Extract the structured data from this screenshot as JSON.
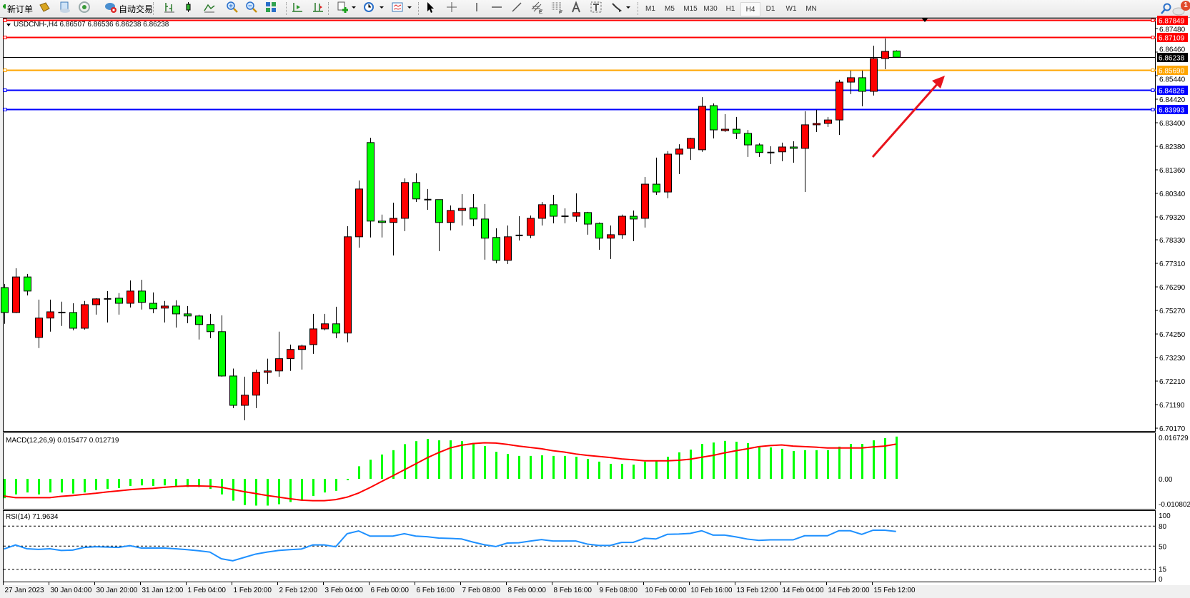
{
  "toolbar": {
    "items": [
      {
        "icon": "new-order-icon",
        "label": "新订单"
      },
      {
        "icon": "history-center-icon"
      },
      {
        "icon": "navigator-icon"
      },
      {
        "icon": "signals-icon"
      },
      {
        "icon": "autotrading-icon",
        "label": "自动交易"
      },
      {
        "icon": "bar-chart-icon"
      },
      {
        "icon": "candlestick-chart-icon"
      },
      {
        "icon": "line-chart-icon"
      },
      {
        "icon": "zoom-in-icon"
      },
      {
        "icon": "zoom-out-icon"
      },
      {
        "icon": "tile-windows-icon"
      },
      {
        "icon": "auto-scroll-icon"
      },
      {
        "icon": "chart-shift-icon"
      },
      {
        "icon": "new-chart-icon"
      },
      {
        "icon": "chevron-down-icon"
      },
      {
        "icon": "periodicity-clock-icon"
      },
      {
        "icon": "chevron-down-icon"
      },
      {
        "icon": "templates-icon"
      },
      {
        "icon": "chevron-down-icon"
      },
      {
        "icon": "cursor-icon"
      },
      {
        "icon": "crosshair-icon"
      },
      {
        "icon": "vertical-line-icon"
      },
      {
        "icon": "horizontal-line-icon"
      },
      {
        "icon": "trendline-icon"
      },
      {
        "icon": "equidistant-channel-icon"
      },
      {
        "icon": "fibonacci-icon"
      },
      {
        "icon": "text-icon"
      },
      {
        "icon": "text-label-icon"
      },
      {
        "icon": "arrows-icon"
      },
      {
        "icon": "chevron-down-icon"
      }
    ],
    "periods": [
      "M1",
      "M5",
      "M15",
      "M30",
      "H1",
      "H4",
      "D1",
      "W1",
      "MN"
    ],
    "active_period": "H4",
    "search_icon": "search-icon",
    "notifications_icon": "chat-bubble-icon",
    "notification_count": "1"
  },
  "chart": {
    "header": "USDCNH-,H4  6.86507 6.86536 6.86238 6.86238",
    "macd_label": "MACD(12,26,9) 0.015477 0.012719",
    "rsi_label": "RSI(14) 71.9634",
    "colors": {
      "bull": "#ff0000",
      "bear": "#00ff00",
      "macd_hist": "#00ff00",
      "macd_signal": "#ff0000",
      "rsi": "#1e90ff",
      "arrow": "#e8141c"
    },
    "price_ticks": [
      "6.87480",
      "6.86460",
      "6.85440",
      "6.84420",
      "6.83400",
      "6.82380",
      "6.81360",
      "6.80340",
      "6.79320",
      "6.78330",
      "6.77310",
      "6.76290",
      "6.75270",
      "6.74250",
      "6.73230",
      "6.72210",
      "6.71190",
      "6.70170"
    ],
    "levels": [
      {
        "price": "6.87849",
        "color": "#ff0000"
      },
      {
        "price": "6.87109",
        "color": "#ff0000"
      },
      {
        "price": "6.86238",
        "color": "#000000"
      },
      {
        "price": "6.85690",
        "color": "#ffa500"
      },
      {
        "price": "6.84826",
        "color": "#0000ff"
      },
      {
        "price": "6.83993",
        "color": "#0000ff"
      }
    ],
    "macd_ticks": [
      "0.016729",
      "0.00",
      "-0.010802"
    ],
    "rsi_ticks": [
      "100",
      "80",
      "50",
      "15",
      "0"
    ],
    "time_labels": [
      "27 Jan 2023",
      "30 Jan 04:00",
      "30 Jan 20:00",
      "31 Jan 12:00",
      "1 Feb 04:00",
      "1 Feb 20:00",
      "2 Feb 12:00",
      "3 Feb 04:00",
      "6 Feb 00:00",
      "6 Feb 16:00",
      "7 Feb 08:00",
      "8 Feb 00:00",
      "8 Feb 16:00",
      "9 Feb 08:00",
      "10 Feb 00:00",
      "10 Feb 16:00",
      "13 Feb 12:00",
      "14 Feb 04:00",
      "14 Feb 20:00",
      "15 Feb 12:00"
    ]
  },
  "chart_data": [
    {
      "type": "candlestick",
      "title": "USDCNH-,H4",
      "timeframe": "H4",
      "ylim": [
        6.7017,
        6.8785
      ],
      "grid": false,
      "ohlc": [
        [
          6.7626,
          6.7642,
          6.7469,
          6.7518
        ],
        [
          6.7518,
          6.771,
          6.7515,
          6.7672
        ],
        [
          6.7672,
          6.7685,
          6.7592,
          6.7611
        ],
        [
          6.741,
          6.7574,
          6.7364,
          6.7494
        ],
        [
          6.7494,
          6.7574,
          6.7435,
          6.7521
        ],
        [
          6.7518,
          6.7565,
          6.746,
          6.7518
        ],
        [
          6.7518,
          6.7558,
          6.7441,
          6.745
        ],
        [
          6.745,
          6.7568,
          6.7444,
          6.7552
        ],
        [
          6.7552,
          6.758,
          6.7509,
          6.7577
        ],
        [
          6.7577,
          6.7611,
          6.7475,
          6.7577
        ],
        [
          6.758,
          6.7602,
          6.7509,
          6.7558
        ],
        [
          6.7558,
          6.7657,
          6.754,
          6.7611
        ],
        [
          6.7611,
          6.766,
          6.7531,
          6.7562
        ],
        [
          6.7558,
          6.7605,
          6.7515,
          6.7534
        ],
        [
          6.7537,
          6.7568,
          6.7475,
          6.7546
        ],
        [
          6.7546,
          6.7571,
          6.7453,
          6.7512
        ],
        [
          6.7512,
          6.7546,
          6.7472,
          6.7503
        ],
        [
          6.7503,
          6.7509,
          6.7401,
          6.7466
        ],
        [
          6.7466,
          6.7512,
          6.7407,
          6.7435
        ],
        [
          6.7435,
          6.7506,
          6.724,
          6.7243
        ],
        [
          6.7243,
          6.7275,
          6.7104,
          6.7116
        ],
        [
          6.7116,
          6.724,
          6.7051,
          6.716
        ],
        [
          6.716,
          6.7271,
          6.7104,
          6.7259
        ],
        [
          6.7259,
          6.7318,
          6.7209,
          6.7265
        ],
        [
          6.7265,
          6.7435,
          6.724,
          6.7318
        ],
        [
          6.7318,
          6.7379,
          6.7265,
          6.7358
        ],
        [
          6.7358,
          6.7379,
          6.7271,
          6.7373
        ],
        [
          6.7379,
          6.7512,
          6.7339,
          6.7447
        ],
        [
          6.7447,
          6.7512,
          6.7441,
          6.7469
        ],
        [
          6.7469,
          6.7543,
          6.7407,
          6.7429
        ],
        [
          6.7429,
          6.7892,
          6.7389,
          6.7846
        ],
        [
          6.7846,
          6.809,
          6.7799,
          6.8053
        ],
        [
          6.8254,
          6.8275,
          6.7843,
          6.7914
        ],
        [
          6.7914,
          6.7942,
          6.7843,
          6.7908
        ],
        [
          6.7908,
          6.7994,
          6.7765,
          6.7926
        ],
        [
          6.7926,
          6.8099,
          6.787,
          6.8081
        ],
        [
          6.8081,
          6.8121,
          6.7997,
          6.801
        ],
        [
          6.8007,
          6.8053,
          6.7963,
          6.8007
        ],
        [
          6.8007,
          6.8007,
          6.7784,
          6.7908
        ],
        [
          6.7908,
          6.7982,
          6.7874,
          6.796
        ],
        [
          6.796,
          6.8031,
          6.7895,
          6.7969
        ],
        [
          6.7972,
          6.8031,
          6.7892,
          6.7923
        ],
        [
          6.7923,
          6.7988,
          6.7747,
          6.784
        ],
        [
          6.7843,
          6.7883,
          6.7731,
          6.7744
        ],
        [
          6.7744,
          6.7895,
          6.7728,
          6.7846
        ],
        [
          6.7852,
          6.7935,
          6.783,
          6.7852
        ],
        [
          6.7852,
          6.7938,
          6.784,
          6.7926
        ],
        [
          6.7926,
          6.7997,
          6.7895,
          6.7985
        ],
        [
          6.7985,
          6.8028,
          6.7904,
          6.7935
        ],
        [
          6.7935,
          6.7969,
          6.7904,
          6.7935
        ],
        [
          6.7935,
          6.8034,
          6.7911,
          6.7951
        ],
        [
          6.7951,
          6.7954,
          6.7855,
          6.7901
        ],
        [
          6.7904,
          6.7908,
          6.779,
          6.784
        ],
        [
          6.784,
          6.7895,
          6.775,
          6.7855
        ],
        [
          6.7855,
          6.7942,
          6.7837,
          6.7935
        ],
        [
          6.7935,
          6.796,
          6.7827,
          6.7923
        ],
        [
          6.7926,
          6.8105,
          6.7886,
          6.8074
        ],
        [
          6.8074,
          6.8189,
          6.8028,
          6.804
        ],
        [
          6.804,
          6.8217,
          6.8013,
          6.8204
        ],
        [
          6.8204,
          6.8247,
          6.8118,
          6.8226
        ],
        [
          6.8229,
          6.8275,
          6.8179,
          6.8272
        ],
        [
          6.8223,
          6.8451,
          6.8214,
          6.8411
        ],
        [
          6.8414,
          6.8424,
          6.8272,
          6.8309
        ],
        [
          6.8306,
          6.8377,
          6.83,
          6.8312
        ],
        [
          6.8312,
          6.8365,
          6.8269,
          6.8294
        ],
        [
          6.8294,
          6.8309,
          6.8192,
          6.8244
        ],
        [
          6.8244,
          6.8251,
          6.8192,
          6.8211
        ],
        [
          6.8211,
          6.8238,
          6.8161,
          6.8211
        ],
        [
          6.8214,
          6.8254,
          6.8173,
          6.8235
        ],
        [
          6.8235,
          6.826,
          6.8167,
          6.8229
        ],
        [
          6.8229,
          6.839,
          6.804,
          6.8331
        ],
        [
          6.8331,
          6.8396,
          6.83,
          6.8337
        ],
        [
          6.8337,
          6.8365,
          6.8322,
          6.8352
        ],
        [
          6.8352,
          6.8526,
          6.8287,
          6.8516
        ],
        [
          6.8516,
          6.8566,
          6.8464,
          6.8535
        ],
        [
          6.8535,
          6.8566,
          6.8411,
          6.8476
        ],
        [
          6.8476,
          6.8674,
          6.8458,
          6.8618
        ],
        [
          6.8618,
          6.8705,
          6.8572,
          6.8649
        ],
        [
          6.86507,
          6.86536,
          6.86238,
          6.86238
        ]
      ]
    },
    {
      "type": "bar",
      "title": "MACD(12,26,9)",
      "ylim": [
        -0.010802,
        0.016729
      ],
      "series": [
        {
          "name": "MACD",
          "type": "bar",
          "values": [
            -0.0071,
            -0.0057,
            -0.005,
            -0.0057,
            -0.005,
            -0.005,
            -0.0054,
            -0.005,
            -0.0041,
            -0.0037,
            -0.0034,
            -0.0026,
            -0.0024,
            -0.0026,
            -0.0024,
            -0.0026,
            -0.003,
            -0.003,
            -0.0037,
            -0.0057,
            -0.008,
            -0.0096,
            -0.0098,
            -0.0098,
            -0.0093,
            -0.0085,
            -0.0078,
            -0.0063,
            -0.005,
            -0.0044,
            -0.0005,
            0.0046,
            0.007,
            0.0089,
            0.0105,
            0.0127,
            0.0138,
            0.0146,
            0.0141,
            0.0141,
            0.0138,
            0.0132,
            0.012,
            0.0099,
            0.0091,
            0.0084,
            0.0084,
            0.0086,
            0.0084,
            0.0084,
            0.0081,
            0.0073,
            0.0063,
            0.0055,
            0.0055,
            0.0052,
            0.0063,
            0.0065,
            0.0081,
            0.0097,
            0.0107,
            0.0128,
            0.0133,
            0.0139,
            0.0136,
            0.0131,
            0.012,
            0.0115,
            0.011,
            0.0102,
            0.0105,
            0.0105,
            0.0105,
            0.0118,
            0.0128,
            0.0128,
            0.0141,
            0.0149,
            0.015477
          ]
        },
        {
          "name": "Signal",
          "type": "line",
          "values": [
            -0.0063,
            -0.0069,
            -0.0069,
            -0.0069,
            -0.0069,
            -0.0064,
            -0.0061,
            -0.0057,
            -0.0053,
            -0.0048,
            -0.0044,
            -0.004,
            -0.0037,
            -0.0035,
            -0.0031,
            -0.0028,
            -0.0026,
            -0.0026,
            -0.0027,
            -0.0031,
            -0.0039,
            -0.0047,
            -0.0054,
            -0.0061,
            -0.0067,
            -0.0073,
            -0.0078,
            -0.008,
            -0.008,
            -0.0076,
            -0.0067,
            -0.0052,
            -0.0032,
            -0.001,
            0.0011,
            0.0033,
            0.0055,
            0.0077,
            0.0096,
            0.0113,
            0.0123,
            0.0129,
            0.0132,
            0.0131,
            0.0126,
            0.012,
            0.0115,
            0.011,
            0.0103,
            0.0098,
            0.0091,
            0.0086,
            0.0082,
            0.0078,
            0.0073,
            0.007,
            0.0066,
            0.0066,
            0.0066,
            0.0068,
            0.0072,
            0.0079,
            0.0086,
            0.0095,
            0.0103,
            0.011,
            0.0118,
            0.0122,
            0.0124,
            0.012,
            0.0118,
            0.0116,
            0.0113,
            0.0113,
            0.0113,
            0.0113,
            0.0117,
            0.012,
            0.012719
          ]
        }
      ]
    },
    {
      "type": "line",
      "title": "RSI(14)",
      "ylim": [
        0,
        100
      ],
      "levels": [
        80,
        50,
        15
      ],
      "values": [
        45.6,
        51.7,
        46,
        45,
        46,
        43.5,
        44,
        48,
        49,
        48.5,
        48,
        50.7,
        47,
        47,
        47,
        46,
        44.6,
        43,
        41,
        31,
        28,
        33,
        38,
        41,
        43.5,
        44.6,
        45.6,
        51.7,
        51.7,
        49,
        68.6,
        72.7,
        65,
        65,
        65,
        68.6,
        65,
        64,
        62,
        61.5,
        60.7,
        56,
        52,
        49.3,
        54.5,
        55,
        57.5,
        59.7,
        57.6,
        57.6,
        57.6,
        53,
        51,
        51,
        55.5,
        55.5,
        61.7,
        60.7,
        67.6,
        68,
        69,
        73,
        66.5,
        66.5,
        63.8,
        60.5,
        58.6,
        59.3,
        59.3,
        59.3,
        65.5,
        65.5,
        65.5,
        73,
        73,
        67.6,
        73.8,
        73.8,
        71.9634
      ]
    }
  ]
}
